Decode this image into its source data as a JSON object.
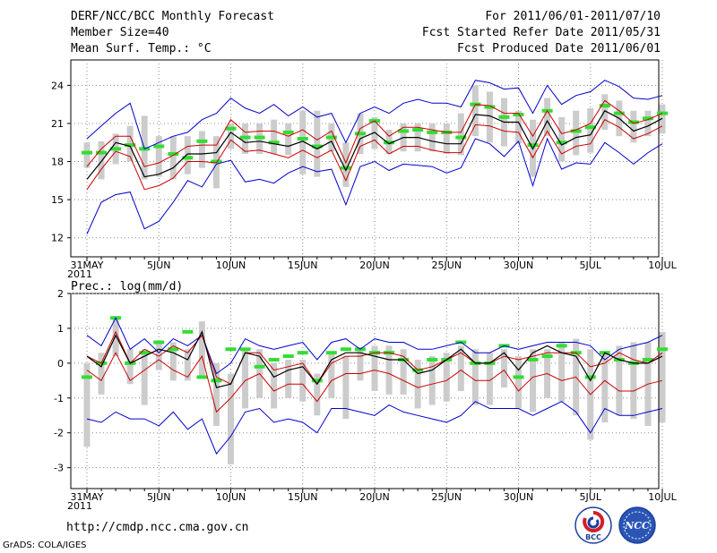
{
  "header": {
    "title": "DERF/NCC/BCC Monthly Forecast",
    "member_size": "Member Size=40",
    "variable1": "Mean Surf. Temp.: °C",
    "period": "For 2011/06/01-2011/07/10",
    "started": "Fcst Started Refer Date 2011/05/31",
    "produced": "Fcst Produced Date 2011/06/01"
  },
  "footer": {
    "url": "http://cmdp.ncc.cma.gov.cn",
    "grads": "GrADS: COLA/IGES",
    "bcc_logo_text": "BCC",
    "ncc_logo_text": "NCC"
  },
  "chart_data": [
    {
      "type": "line",
      "title": "Mean Surf. Temp.: °C",
      "x_labels": [
        "31MAY\n2011",
        "5JUN",
        "10JUN",
        "15JUN",
        "20JUN",
        "25JUN",
        "30JUN",
        "5JUL",
        "10JUL"
      ],
      "x_label_days": [
        0,
        5,
        10,
        15,
        20,
        25,
        30,
        35,
        40
      ],
      "ylim": [
        10.5,
        26
      ],
      "yticks": [
        12,
        15,
        18,
        21,
        24
      ],
      "colors": {
        "max": "#0000cc",
        "mean": "#000000",
        "spread": "#cc0000",
        "observed": "#33dd33",
        "box": "#cccccc"
      },
      "series": [
        {
          "name": "max",
          "values": [
            19.8,
            20.8,
            21.8,
            22.6,
            19.0,
            19.5,
            20.0,
            20.3,
            21.3,
            21.8,
            23.0,
            22.2,
            21.8,
            22.5,
            21.6,
            22.3,
            21.5,
            21.8,
            19.5,
            21.8,
            22.3,
            21.8,
            22.6,
            22.9,
            22.6,
            22.6,
            22.3,
            24.4,
            24.2,
            23.7,
            23.8,
            21.8,
            24.0,
            22.5,
            23.2,
            23.5,
            24.4,
            23.9,
            23.0,
            22.9,
            23.2
          ]
        },
        {
          "name": "spread_upper",
          "values": [
            17.6,
            19.0,
            20.0,
            20.0,
            17.6,
            17.9,
            18.5,
            19.2,
            19.3,
            19.3,
            21.3,
            20.3,
            20.4,
            20.4,
            20.0,
            20.5,
            19.7,
            20.4,
            17.9,
            20.6,
            21.2,
            20.0,
            20.7,
            20.7,
            20.5,
            20.3,
            20.3,
            22.5,
            22.4,
            21.8,
            21.8,
            20.0,
            22.0,
            20.2,
            20.5,
            21.0,
            22.8,
            22.0,
            21.0,
            21.3,
            21.8
          ]
        },
        {
          "name": "mean",
          "values": [
            16.6,
            18.0,
            19.5,
            19.2,
            16.8,
            17.0,
            17.5,
            18.6,
            18.6,
            18.7,
            20.3,
            19.5,
            19.6,
            19.4,
            19.2,
            19.6,
            19.0,
            19.6,
            17.3,
            19.8,
            20.3,
            19.4,
            19.9,
            19.9,
            19.6,
            19.4,
            19.4,
            21.7,
            21.6,
            21.1,
            21.1,
            19.0,
            21.2,
            19.3,
            19.9,
            20.1,
            22.0,
            21.4,
            20.4,
            20.8,
            21.4
          ]
        },
        {
          "name": "spread_lower",
          "values": [
            15.8,
            17.4,
            18.8,
            18.4,
            15.8,
            16.1,
            16.7,
            18.0,
            18.0,
            17.9,
            19.7,
            18.8,
            18.9,
            18.6,
            18.3,
            18.9,
            18.3,
            18.9,
            16.5,
            19.2,
            19.7,
            18.6,
            19.2,
            19.2,
            18.9,
            18.7,
            18.7,
            20.9,
            20.8,
            20.4,
            20.3,
            18.3,
            20.4,
            18.6,
            19.2,
            19.4,
            21.3,
            20.7,
            19.8,
            20.2,
            20.8
          ]
        },
        {
          "name": "min",
          "values": [
            12.3,
            14.8,
            15.4,
            15.6,
            12.7,
            13.3,
            14.8,
            16.5,
            16.0,
            17.8,
            18.1,
            16.4,
            16.6,
            16.3,
            17.1,
            17.6,
            17.2,
            17.4,
            14.6,
            17.6,
            18.0,
            17.3,
            17.8,
            17.7,
            17.6,
            17.1,
            17.5,
            19.8,
            19.4,
            18.4,
            19.6,
            16.1,
            19.8,
            17.4,
            17.9,
            17.8,
            19.5,
            18.7,
            17.8,
            18.7,
            19.4
          ]
        },
        {
          "name": "observed",
          "values": [
            18.7,
            18.7,
            19.0,
            19.3,
            19.0,
            19.2,
            18.6,
            18.3,
            19.6,
            18.0,
            20.6,
            19.9,
            19.9,
            19.5,
            20.3,
            19.8,
            19.2,
            19.9,
            17.5,
            20.2,
            21.2,
            19.5,
            20.4,
            20.5,
            20.3,
            20.3,
            19.9,
            22.5,
            22.3,
            21.5,
            21.7,
            19.3,
            22.0,
            19.5,
            20.4,
            20.7,
            22.4,
            21.8,
            21.1,
            21.4,
            21.8
          ]
        },
        {
          "name": "box_top",
          "values": [
            19.5,
            19.6,
            20.2,
            20.8,
            21.6,
            20.0,
            20.0,
            20.0,
            20.4,
            20.0,
            21.0,
            21.0,
            21.0,
            21.3,
            21.0,
            22.0,
            22.0,
            21.0,
            19.5,
            21.8,
            21.5,
            20.5,
            21.0,
            21.0,
            21.0,
            21.0,
            21.8,
            24.0,
            23.5,
            23.0,
            22.0,
            21.3,
            23.0,
            21.5,
            22.0,
            22.2,
            23.3,
            22.8,
            22.0,
            22.0,
            22.5
          ]
        },
        {
          "name": "box_bottom",
          "values": [
            17.5,
            16.6,
            17.8,
            18.0,
            16.6,
            16.8,
            16.6,
            17.0,
            17.5,
            15.9,
            19.0,
            18.6,
            18.6,
            18.6,
            18.5,
            17.0,
            16.8,
            18.8,
            16.0,
            18.6,
            19.0,
            18.6,
            18.8,
            18.8,
            18.8,
            18.6,
            18.5,
            20.0,
            19.5,
            19.2,
            19.4,
            16.8,
            20.0,
            18.0,
            18.5,
            18.7,
            20.5,
            20.0,
            19.5,
            20.0,
            20.2
          ]
        }
      ]
    },
    {
      "type": "line",
      "title": "Prec.: log(mm/d)",
      "x_labels": [
        "31MAY\n2011",
        "5JUN",
        "10JUN",
        "15JUN",
        "20JUN",
        "25JUN",
        "30JUN",
        "5JUL",
        "10JUL"
      ],
      "x_label_days": [
        0,
        5,
        10,
        15,
        20,
        25,
        30,
        35,
        40
      ],
      "ylim": [
        -3.6,
        2
      ],
      "yticks": [
        -3,
        -2,
        -1,
        0,
        1,
        2
      ],
      "colors": {
        "max": "#0000cc",
        "mean": "#000000",
        "spread": "#cc0000",
        "observed": "#33dd33",
        "box": "#cccccc"
      },
      "series": [
        {
          "name": "max",
          "values": [
            0.8,
            0.5,
            1.3,
            0.4,
            0.7,
            0.3,
            0.7,
            0.5,
            0.8,
            -0.3,
            0.0,
            0.7,
            0.5,
            0.4,
            0.5,
            0.6,
            0.1,
            0.6,
            0.7,
            0.4,
            0.7,
            0.6,
            0.6,
            0.4,
            0.4,
            0.5,
            0.6,
            0.3,
            0.3,
            0.5,
            0.4,
            0.5,
            0.6,
            0.6,
            0.6,
            0.5,
            0.1,
            0.4,
            0.5,
            0.6,
            0.8
          ]
        },
        {
          "name": "spread_upper",
          "values": [
            0.2,
            0.0,
            0.9,
            0.0,
            0.4,
            0.2,
            0.5,
            0.3,
            0.8,
            -0.4,
            -0.6,
            0.3,
            0.3,
            -0.2,
            -0.1,
            0.0,
            -0.6,
            0.0,
            0.2,
            0.2,
            0.3,
            0.3,
            0.2,
            -0.2,
            -0.1,
            0.1,
            0.3,
            0.0,
            0.0,
            0.2,
            0.1,
            0.2,
            0.3,
            0.3,
            0.3,
            -0.1,
            0.0,
            0.3,
            0.1,
            0.0,
            0.3
          ]
        },
        {
          "name": "mean",
          "values": [
            0.2,
            -0.1,
            0.8,
            0.0,
            0.2,
            0.4,
            0.3,
            0.1,
            0.9,
            -0.7,
            -0.6,
            0.3,
            0.2,
            -0.4,
            -0.2,
            -0.1,
            -0.6,
            0.1,
            0.3,
            0.3,
            0.2,
            0.1,
            0.1,
            -0.3,
            -0.2,
            0.1,
            0.4,
            0.0,
            0.0,
            0.3,
            -0.2,
            0.3,
            0.5,
            0.3,
            0.2,
            -0.5,
            0.3,
            0.1,
            0.0,
            0.0,
            0.2
          ]
        },
        {
          "name": "spread_lower",
          "values": [
            -0.2,
            -0.5,
            0.3,
            -0.5,
            -0.2,
            0.1,
            -0.2,
            -0.4,
            0.2,
            -1.4,
            -1.0,
            -0.5,
            -0.3,
            -0.8,
            -0.6,
            -0.6,
            -1.1,
            -0.5,
            -0.3,
            -0.3,
            -0.2,
            -0.3,
            -0.5,
            -0.7,
            -0.6,
            -0.5,
            -0.2,
            -0.5,
            -0.5,
            -0.2,
            -0.8,
            -0.4,
            -0.3,
            -0.5,
            -0.4,
            -0.9,
            -0.5,
            -0.8,
            -0.8,
            -0.6,
            -0.5
          ]
        },
        {
          "name": "min",
          "values": [
            -1.6,
            -1.7,
            -1.4,
            -1.6,
            -1.6,
            -1.8,
            -1.4,
            -1.9,
            -1.6,
            -2.6,
            -2.1,
            -1.4,
            -1.3,
            -1.7,
            -1.6,
            -1.7,
            -2.0,
            -1.3,
            -1.3,
            -1.4,
            -1.5,
            -1.2,
            -1.4,
            -1.5,
            -1.6,
            -1.7,
            -1.5,
            -1.1,
            -1.3,
            -1.3,
            -1.3,
            -1.5,
            -1.3,
            -1.1,
            -1.4,
            -2.0,
            -1.3,
            -1.5,
            -1.5,
            -1.4,
            -1.3
          ]
        },
        {
          "name": "observed",
          "values": [
            -0.4,
            0.0,
            1.3,
            0.0,
            0.3,
            0.6,
            0.4,
            0.9,
            -0.4,
            -0.5,
            0.4,
            0.4,
            -0.1,
            0.1,
            0.2,
            0.3,
            -0.5,
            0.3,
            0.4,
            0.4,
            0.3,
            0.3,
            0.1,
            -0.2,
            0.1,
            0.1,
            0.6,
            0.0,
            0.0,
            0.5,
            -0.4,
            0.1,
            0.2,
            0.5,
            0.3,
            -0.4,
            0.3,
            0.1,
            0.0,
            0.1,
            0.4
          ]
        },
        {
          "name": "box_top",
          "values": [
            0.0,
            0.3,
            1.3,
            0.4,
            0.4,
            0.6,
            0.6,
            0.4,
            1.2,
            0.0,
            -0.3,
            0.4,
            0.4,
            0.0,
            0.1,
            0.1,
            -0.3,
            0.3,
            0.2,
            0.4,
            0.5,
            0.5,
            0.4,
            0.1,
            0.2,
            0.3,
            0.5,
            0.4,
            0.3,
            0.4,
            0.2,
            0.4,
            0.4,
            0.6,
            0.7,
            0.4,
            0.3,
            0.5,
            0.6,
            0.6,
            0.9
          ]
        },
        {
          "name": "box_bottom",
          "values": [
            -2.4,
            -0.9,
            0.2,
            -0.6,
            -1.2,
            -0.2,
            -0.5,
            -0.5,
            -0.4,
            -1.8,
            -2.9,
            -1.3,
            -1.0,
            -1.3,
            -1.0,
            -1.1,
            -1.5,
            -1.0,
            -1.6,
            -0.5,
            -0.8,
            -0.9,
            -0.9,
            -1.3,
            -1.2,
            -1.1,
            -0.8,
            -1.2,
            -1.2,
            -0.7,
            -1.3,
            -1.4,
            -1.0,
            -1.1,
            -1.5,
            -2.2,
            -1.7,
            -1.5,
            -1.6,
            -1.8,
            -1.7
          ]
        }
      ]
    }
  ]
}
